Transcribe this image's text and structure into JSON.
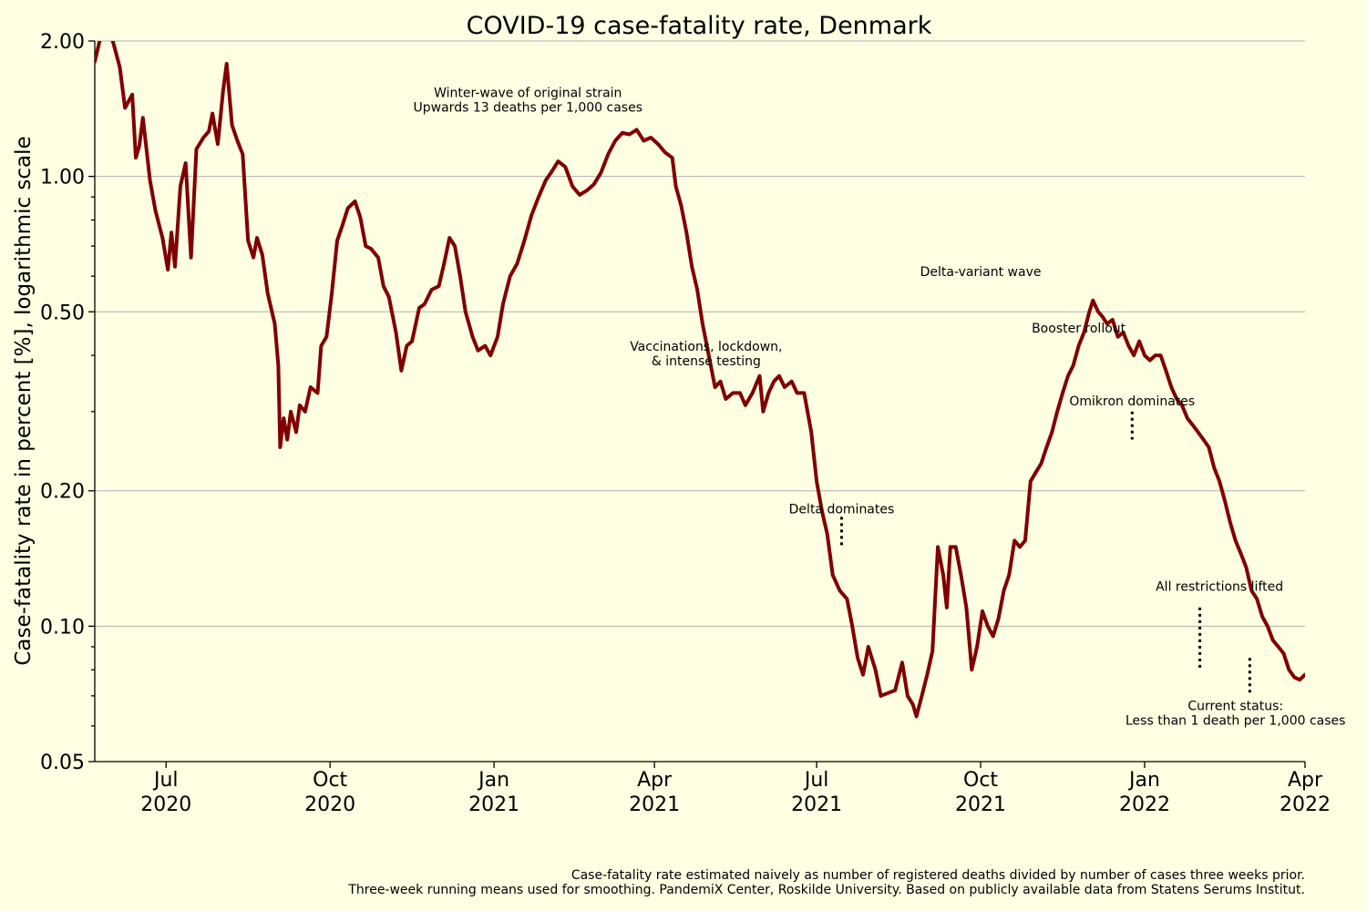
{
  "chart_data": {
    "type": "line",
    "title": "COVID-19 case-fatality rate, Denmark",
    "ylabel": "Case-fatality rate in percent [%], logarithmic scale",
    "yscale": "log",
    "ylim": [
      0.05,
      2.0
    ],
    "xlim": [
      "2020-05-22",
      "2022-04-01"
    ],
    "grid": "horizontal major",
    "ytick_labels": [
      {
        "value": 0.05,
        "label": "0.05"
      },
      {
        "value": 0.1,
        "label": "0.10"
      },
      {
        "value": 0.2,
        "label": "0.20"
      },
      {
        "value": 0.5,
        "label": "0.50"
      },
      {
        "value": 1.0,
        "label": "1.00"
      },
      {
        "value": 2.0,
        "label": "2.00"
      }
    ],
    "yminor_ticks": [
      0.06,
      0.07,
      0.08,
      0.09,
      0.3,
      0.4,
      0.6,
      0.7,
      0.8,
      0.9
    ],
    "xtick_labels": [
      {
        "date": "2020-07-01",
        "month": "Jul",
        "year": "2020"
      },
      {
        "date": "2020-10-01",
        "month": "Oct",
        "year": "2020"
      },
      {
        "date": "2021-01-01",
        "month": "Jan",
        "year": "2021"
      },
      {
        "date": "2021-04-01",
        "month": "Apr",
        "year": "2021"
      },
      {
        "date": "2021-07-01",
        "month": "Jul",
        "year": "2021"
      },
      {
        "date": "2021-10-01",
        "month": "Oct",
        "year": "2021"
      },
      {
        "date": "2022-01-01",
        "month": "Jan",
        "year": "2022"
      },
      {
        "date": "2022-04-01",
        "month": "Apr",
        "year": "2022"
      }
    ],
    "series": [
      {
        "color": "#800000",
        "points": [
          [
            "2020-05-22",
            1.8
          ],
          [
            "2020-05-26",
            2.1
          ],
          [
            "2020-05-30",
            2.15
          ],
          [
            "2020-06-05",
            1.75
          ],
          [
            "2020-06-08",
            1.42
          ],
          [
            "2020-06-12",
            1.52
          ],
          [
            "2020-06-14",
            1.1
          ],
          [
            "2020-06-16",
            1.17
          ],
          [
            "2020-06-18",
            1.35
          ],
          [
            "2020-06-22",
            0.98
          ],
          [
            "2020-06-25",
            0.84
          ],
          [
            "2020-06-29",
            0.73
          ],
          [
            "2020-07-02",
            0.62
          ],
          [
            "2020-07-04",
            0.75
          ],
          [
            "2020-07-06",
            0.63
          ],
          [
            "2020-07-09",
            0.95
          ],
          [
            "2020-07-12",
            1.07
          ],
          [
            "2020-07-15",
            0.66
          ],
          [
            "2020-07-18",
            1.15
          ],
          [
            "2020-07-22",
            1.22
          ],
          [
            "2020-07-25",
            1.26
          ],
          [
            "2020-07-27",
            1.38
          ],
          [
            "2020-07-30",
            1.18
          ],
          [
            "2020-08-02",
            1.55
          ],
          [
            "2020-08-04",
            1.78
          ],
          [
            "2020-08-07",
            1.3
          ],
          [
            "2020-08-10",
            1.2
          ],
          [
            "2020-08-13",
            1.12
          ],
          [
            "2020-08-16",
            0.72
          ],
          [
            "2020-08-19",
            0.66
          ],
          [
            "2020-08-21",
            0.73
          ],
          [
            "2020-08-24",
            0.67
          ],
          [
            "2020-08-27",
            0.55
          ],
          [
            "2020-08-31",
            0.47
          ],
          [
            "2020-09-02",
            0.38
          ],
          [
            "2020-09-03",
            0.25
          ],
          [
            "2020-09-05",
            0.29
          ],
          [
            "2020-09-07",
            0.26
          ],
          [
            "2020-09-09",
            0.3
          ],
          [
            "2020-09-12",
            0.27
          ],
          [
            "2020-09-14",
            0.31
          ],
          [
            "2020-09-17",
            0.3
          ],
          [
            "2020-09-20",
            0.34
          ],
          [
            "2020-09-24",
            0.33
          ],
          [
            "2020-09-26",
            0.42
          ],
          [
            "2020-09-29",
            0.44
          ],
          [
            "2020-10-02",
            0.55
          ],
          [
            "2020-10-05",
            0.72
          ],
          [
            "2020-10-08",
            0.78
          ],
          [
            "2020-10-11",
            0.85
          ],
          [
            "2020-10-15",
            0.88
          ],
          [
            "2020-10-18",
            0.81
          ],
          [
            "2020-10-21",
            0.7
          ],
          [
            "2020-10-24",
            0.69
          ],
          [
            "2020-10-28",
            0.66
          ],
          [
            "2020-10-31",
            0.57
          ],
          [
            "2020-11-03",
            0.54
          ],
          [
            "2020-11-07",
            0.45
          ],
          [
            "2020-11-10",
            0.37
          ],
          [
            "2020-11-13",
            0.42
          ],
          [
            "2020-11-16",
            0.43
          ],
          [
            "2020-11-20",
            0.51
          ],
          [
            "2020-11-23",
            0.52
          ],
          [
            "2020-11-27",
            0.56
          ],
          [
            "2020-12-01",
            0.57
          ],
          [
            "2020-12-04",
            0.64
          ],
          [
            "2020-12-07",
            0.73
          ],
          [
            "2020-12-10",
            0.7
          ],
          [
            "2020-12-13",
            0.6
          ],
          [
            "2020-12-16",
            0.5
          ],
          [
            "2020-12-20",
            0.44
          ],
          [
            "2020-12-23",
            0.41
          ],
          [
            "2020-12-27",
            0.42
          ],
          [
            "2020-12-30",
            0.4
          ],
          [
            "2021-01-03",
            0.44
          ],
          [
            "2021-01-06",
            0.52
          ],
          [
            "2021-01-10",
            0.6
          ],
          [
            "2021-01-14",
            0.64
          ],
          [
            "2021-01-18",
            0.72
          ],
          [
            "2021-01-22",
            0.82
          ],
          [
            "2021-01-26",
            0.9
          ],
          [
            "2021-01-30",
            0.98
          ],
          [
            "2021-02-02",
            1.02
          ],
          [
            "2021-02-06",
            1.08
          ],
          [
            "2021-02-10",
            1.05
          ],
          [
            "2021-02-14",
            0.95
          ],
          [
            "2021-02-18",
            0.91
          ],
          [
            "2021-02-22",
            0.93
          ],
          [
            "2021-02-26",
            0.96
          ],
          [
            "2021-03-02",
            1.02
          ],
          [
            "2021-03-06",
            1.12
          ],
          [
            "2021-03-10",
            1.2
          ],
          [
            "2021-03-14",
            1.25
          ],
          [
            "2021-03-18",
            1.24
          ],
          [
            "2021-03-22",
            1.27
          ],
          [
            "2021-03-26",
            1.2
          ],
          [
            "2021-03-30",
            1.22
          ],
          [
            "2021-04-03",
            1.18
          ],
          [
            "2021-04-07",
            1.13
          ],
          [
            "2021-04-11",
            1.1
          ],
          [
            "2021-04-13",
            0.95
          ],
          [
            "2021-04-16",
            0.86
          ],
          [
            "2021-04-19",
            0.75
          ],
          [
            "2021-04-22",
            0.63
          ],
          [
            "2021-04-25",
            0.56
          ],
          [
            "2021-04-28",
            0.47
          ],
          [
            "2021-05-02",
            0.39
          ],
          [
            "2021-05-05",
            0.34
          ],
          [
            "2021-05-08",
            0.35
          ],
          [
            "2021-05-11",
            0.32
          ],
          [
            "2021-05-15",
            0.33
          ],
          [
            "2021-05-19",
            0.33
          ],
          [
            "2021-05-22",
            0.31
          ],
          [
            "2021-05-26",
            0.33
          ],
          [
            "2021-05-30",
            0.36
          ],
          [
            "2021-06-01",
            0.3
          ],
          [
            "2021-06-04",
            0.33
          ],
          [
            "2021-06-07",
            0.35
          ],
          [
            "2021-06-10",
            0.36
          ],
          [
            "2021-06-13",
            0.34
          ],
          [
            "2021-06-17",
            0.35
          ],
          [
            "2021-06-20",
            0.33
          ],
          [
            "2021-06-24",
            0.33
          ],
          [
            "2021-06-28",
            0.27
          ],
          [
            "2021-07-01",
            0.21
          ],
          [
            "2021-07-04",
            0.18
          ],
          [
            "2021-07-07",
            0.16
          ],
          [
            "2021-07-10",
            0.13
          ],
          [
            "2021-07-14",
            0.12
          ],
          [
            "2021-07-18",
            0.115
          ],
          [
            "2021-07-21",
            0.1
          ],
          [
            "2021-07-24",
            0.085
          ],
          [
            "2021-07-27",
            0.078
          ],
          [
            "2021-07-30",
            0.09
          ],
          [
            "2021-08-03",
            0.08
          ],
          [
            "2021-08-06",
            0.07
          ],
          [
            "2021-08-10",
            0.071
          ],
          [
            "2021-08-14",
            0.072
          ],
          [
            "2021-08-18",
            0.083
          ],
          [
            "2021-08-21",
            0.07
          ],
          [
            "2021-08-24",
            0.067
          ],
          [
            "2021-08-26",
            0.063
          ],
          [
            "2021-08-29",
            0.07
          ],
          [
            "2021-09-01",
            0.078
          ],
          [
            "2021-09-04",
            0.088
          ],
          [
            "2021-09-07",
            0.15
          ],
          [
            "2021-09-10",
            0.13
          ],
          [
            "2021-09-12",
            0.11
          ],
          [
            "2021-09-14",
            0.15
          ],
          [
            "2021-09-17",
            0.15
          ],
          [
            "2021-09-20",
            0.13
          ],
          [
            "2021-09-23",
            0.11
          ],
          [
            "2021-09-26",
            0.08
          ],
          [
            "2021-09-29",
            0.09
          ],
          [
            "2021-10-02",
            0.108
          ],
          [
            "2021-10-05",
            0.1
          ],
          [
            "2021-10-08",
            0.095
          ],
          [
            "2021-10-11",
            0.104
          ],
          [
            "2021-10-14",
            0.12
          ],
          [
            "2021-10-17",
            0.13
          ],
          [
            "2021-10-20",
            0.155
          ],
          [
            "2021-10-23",
            0.15
          ],
          [
            "2021-10-26",
            0.155
          ],
          [
            "2021-10-29",
            0.21
          ],
          [
            "2021-11-01",
            0.22
          ],
          [
            "2021-11-04",
            0.23
          ],
          [
            "2021-11-07",
            0.25
          ],
          [
            "2021-11-10",
            0.27
          ],
          [
            "2021-11-13",
            0.3
          ],
          [
            "2021-11-16",
            0.33
          ],
          [
            "2021-11-19",
            0.36
          ],
          [
            "2021-11-22",
            0.38
          ],
          [
            "2021-11-25",
            0.42
          ],
          [
            "2021-11-28",
            0.45
          ],
          [
            "2021-12-01",
            0.5
          ],
          [
            "2021-12-03",
            0.53
          ],
          [
            "2021-12-06",
            0.5
          ],
          [
            "2021-12-08",
            0.49
          ],
          [
            "2021-12-11",
            0.47
          ],
          [
            "2021-12-14",
            0.48
          ],
          [
            "2021-12-17",
            0.44
          ],
          [
            "2021-12-20",
            0.45
          ],
          [
            "2021-12-23",
            0.42
          ],
          [
            "2021-12-26",
            0.4
          ],
          [
            "2021-12-29",
            0.43
          ],
          [
            "2022-01-01",
            0.4
          ],
          [
            "2022-01-04",
            0.39
          ],
          [
            "2022-01-07",
            0.4
          ],
          [
            "2022-01-10",
            0.4
          ],
          [
            "2022-01-13",
            0.37
          ],
          [
            "2022-01-16",
            0.34
          ],
          [
            "2022-01-19",
            0.32
          ],
          [
            "2022-01-22",
            0.31
          ],
          [
            "2022-01-25",
            0.29
          ],
          [
            "2022-01-28",
            0.28
          ],
          [
            "2022-01-31",
            0.27
          ],
          [
            "2022-02-03",
            0.26
          ],
          [
            "2022-02-06",
            0.25
          ],
          [
            "2022-02-09",
            0.225
          ],
          [
            "2022-02-12",
            0.21
          ],
          [
            "2022-02-15",
            0.19
          ],
          [
            "2022-02-18",
            0.17
          ],
          [
            "2022-02-21",
            0.155
          ],
          [
            "2022-02-24",
            0.145
          ],
          [
            "2022-02-27",
            0.135
          ],
          [
            "2022-03-02",
            0.12
          ],
          [
            "2022-03-05",
            0.115
          ],
          [
            "2022-03-08",
            0.105
          ],
          [
            "2022-03-11",
            0.1
          ],
          [
            "2022-03-14",
            0.093
          ],
          [
            "2022-03-17",
            0.09
          ],
          [
            "2022-03-20",
            0.087
          ],
          [
            "2022-03-23",
            0.08
          ],
          [
            "2022-03-26",
            0.077
          ],
          [
            "2022-03-29",
            0.076
          ],
          [
            "2022-04-01",
            0.078
          ]
        ]
      }
    ],
    "annotations": [
      {
        "lines": [
          "Winter-wave of original strain",
          "Upwards 13 deaths per 1,000 cases"
        ],
        "date": "2021-01-20",
        "value": 1.5
      },
      {
        "lines": [
          "Vaccinations, lockdown,",
          "& intense testing"
        ],
        "date": "2021-04-30",
        "value": 0.41
      },
      {
        "lines": [
          "Delta dominates"
        ],
        "date": "2021-07-15",
        "value": 0.178,
        "marker": {
          "date": "2021-07-15",
          "from": 0.15,
          "to": 0.175
        }
      },
      {
        "lines": [
          "Delta-variant wave"
        ],
        "date": "2021-10-01",
        "value": 0.6
      },
      {
        "lines": [
          "Booster rollout"
        ],
        "date": "2021-11-25",
        "value": 0.45
      },
      {
        "lines": [
          "Omikron dominates"
        ],
        "date": "2021-12-25",
        "value": 0.31,
        "marker": {
          "date": "2021-12-25",
          "from": 0.26,
          "to": 0.3
        }
      },
      {
        "lines": [
          "All restrictions lifted"
        ],
        "date": "2022-02-12",
        "value": 0.12,
        "marker": {
          "date": "2022-02-01",
          "from": 0.08,
          "to": 0.11
        }
      },
      {
        "lines": [
          "Current status:",
          "Less than 1 death per 1,000 cases"
        ],
        "date": "2022-02-21",
        "value": 0.065,
        "marker": {
          "date": "2022-03-01",
          "from": 0.07,
          "to": 0.085
        }
      }
    ],
    "footnote": [
      "Case-fatality rate estimated naively as number of registered deaths divided by number of cases three weeks prior.",
      "Three-week running means used for smoothing. PandemiX Center, Roskilde University. Based on publicly available data from Statens Serums Institut."
    ]
  }
}
